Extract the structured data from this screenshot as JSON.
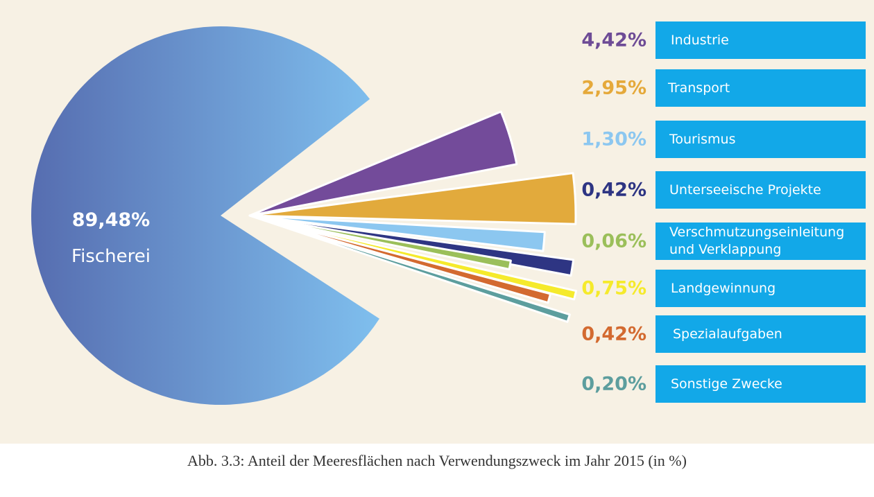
{
  "caption": "Abb. 3.3: Anteil der Meeresflächen nach Verwendungszweck im Jahr 2015 (in %)",
  "chart_data": {
    "type": "pie",
    "title": "Abb. 3.3: Anteil der Meeresflächen nach Verwendungszweck im Jahr 2015 (in %)",
    "main_slice": {
      "label": "Fischerei",
      "value_label": "89,48%",
      "value": 89.48,
      "color": "#6a9fd8"
    },
    "slices": [
      {
        "label": "Industrie",
        "value_label": "4,42%",
        "value": 4.42,
        "color": "#734b9a"
      },
      {
        "label": "Transport",
        "value_label": "2,95%",
        "value": 2.95,
        "color": "#e2aa3c"
      },
      {
        "label": "Tourismus",
        "value_label": "1,30%",
        "value": 1.3,
        "color": "#8cc7f0"
      },
      {
        "label": "Unterseeische Projekte",
        "value_label": "0,42%",
        "value": 0.42,
        "color": "#2e3583"
      },
      {
        "label": "Verschmutzungseinleitung\nund Verklappung",
        "value_label": "0,06%",
        "value": 0.06,
        "color": "#9bbf5a"
      },
      {
        "label": "Landgewinnung",
        "value_label": "0,75%",
        "value": 0.75,
        "color": "#f5ea2c"
      },
      {
        "label": "Spezialaufgaben",
        "value_label": "0,42%",
        "value": 0.42,
        "color": "#d36a30"
      },
      {
        "label": "Sonstige Zwecke",
        "value_label": "0,20%",
        "value": 0.2,
        "color": "#5d9e9e"
      }
    ]
  },
  "legend_value_colors": [
    "#6e4c96",
    "#e5a93a",
    "#8cc7f0",
    "#2e3583",
    "#9bbf5a",
    "#f5ea2c",
    "#d36a30",
    "#5d9e9e"
  ],
  "legend_box_color": "#12a8e8",
  "background_color": "#f7f1e4"
}
